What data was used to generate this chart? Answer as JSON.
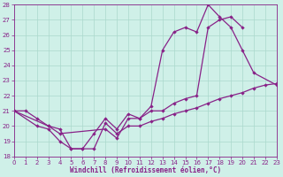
{
  "xlabel": "Windchill (Refroidissement éolien,°C)",
  "xlim": [
    0,
    23
  ],
  "ylim": [
    18,
    28
  ],
  "yticks": [
    18,
    19,
    20,
    21,
    22,
    23,
    24,
    25,
    26,
    27,
    28
  ],
  "xticks": [
    0,
    1,
    2,
    3,
    4,
    5,
    6,
    7,
    8,
    9,
    10,
    11,
    12,
    13,
    14,
    15,
    16,
    17,
    18,
    19,
    20,
    21,
    22,
    23
  ],
  "bg_color": "#cff0e8",
  "grid_color": "#aad8cc",
  "line_color": "#882288",
  "line1_x": [
    0,
    1,
    2,
    3,
    4,
    5,
    6,
    7,
    8,
    9,
    10,
    11,
    12,
    13,
    14,
    15,
    16,
    17,
    18,
    19,
    20,
    21,
    22,
    23
  ],
  "line1_y": [
    21.0,
    21.0,
    20.5,
    20.0,
    19.8,
    18.5,
    18.5,
    18.5,
    20.2,
    19.5,
    20.0,
    20.0,
    20.3,
    20.5,
    20.8,
    21.0,
    21.2,
    21.5,
    21.8,
    22.0,
    22.2,
    22.5,
    22.7,
    22.8
  ],
  "line2_x": [
    0,
    2,
    3,
    4,
    5,
    6,
    7,
    8,
    9,
    10,
    11,
    12,
    13,
    14,
    15,
    16,
    17,
    18,
    19,
    20,
    21,
    23
  ],
  "line2_y": [
    21.0,
    20.0,
    19.8,
    19.0,
    18.5,
    18.5,
    19.5,
    20.5,
    19.8,
    20.8,
    20.5,
    21.3,
    25.0,
    26.2,
    26.5,
    26.2,
    28.0,
    27.2,
    26.5,
    25.0,
    23.5,
    22.7
  ],
  "line3_x": [
    0,
    3,
    4,
    8,
    9,
    10,
    11,
    12,
    13,
    14,
    15,
    16,
    17,
    18,
    19,
    20
  ],
  "line3_y": [
    21.0,
    20.0,
    19.5,
    19.8,
    19.2,
    20.5,
    20.5,
    21.0,
    21.0,
    21.5,
    21.8,
    22.0,
    26.5,
    27.0,
    27.2,
    26.5
  ]
}
